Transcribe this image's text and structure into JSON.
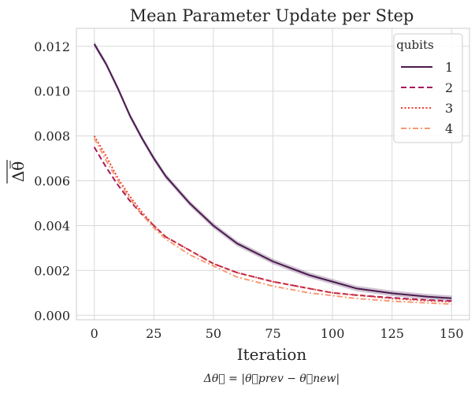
{
  "chart_data": {
    "type": "line",
    "title": "Mean Parameter Update per Step",
    "xlabel": "Iteration",
    "ylabel": "Δθ⃗ (overline)",
    "ylabel_display": "Δθ",
    "caption": "Δθ⃗ = |θ⃗prev − θ⃗new|",
    "xlim": [
      -7.5,
      157.5
    ],
    "ylim": [
      -0.0002,
      0.0128
    ],
    "xticks": [
      0,
      25,
      50,
      75,
      100,
      125,
      150
    ],
    "yticks": [
      0.0,
      0.002,
      0.004,
      0.006,
      0.008,
      0.01,
      0.012
    ],
    "ytick_labels": [
      "0.000",
      "0.002",
      "0.004",
      "0.006",
      "0.008",
      "0.010",
      "0.012"
    ],
    "grid": true,
    "legend": {
      "title": "qubits",
      "placement": "top-right"
    },
    "x": [
      0,
      5,
      10,
      15,
      20,
      25,
      30,
      40,
      50,
      60,
      75,
      90,
      100,
      110,
      125,
      140,
      150
    ],
    "series": [
      {
        "name": "1",
        "color": "#4a1a4f",
        "dash": "solid",
        "band": true,
        "values": [
          0.0121,
          0.0112,
          0.0101,
          0.0089,
          0.0079,
          0.007,
          0.0062,
          0.005,
          0.004,
          0.0032,
          0.0024,
          0.0018,
          0.0015,
          0.0012,
          0.00098,
          0.00083,
          0.00076
        ]
      },
      {
        "name": "2",
        "color": "#a8185e",
        "dash": "dashed",
        "values": [
          0.0075,
          0.0066,
          0.0058,
          0.0051,
          0.0045,
          0.004,
          0.0035,
          0.0029,
          0.0023,
          0.0019,
          0.0015,
          0.0012,
          0.001,
          0.0009,
          0.00078,
          0.00068,
          0.00064
        ]
      },
      {
        "name": "3",
        "color": "#e8402c",
        "dash": "dotted",
        "values": [
          0.008,
          0.0071,
          0.0061,
          0.0053,
          0.0046,
          0.004,
          0.0035,
          0.0029,
          0.0023,
          0.0019,
          0.0015,
          0.0012,
          0.001,
          0.0009,
          0.00075,
          0.00065,
          0.0006
        ]
      },
      {
        "name": "4",
        "color": "#f79a73",
        "dash": "dashdot",
        "values": [
          0.0079,
          0.0069,
          0.006,
          0.0052,
          0.0045,
          0.0039,
          0.0034,
          0.0027,
          0.0022,
          0.0017,
          0.0013,
          0.001,
          0.00088,
          0.00075,
          0.00063,
          0.00055,
          0.0005
        ]
      }
    ]
  }
}
